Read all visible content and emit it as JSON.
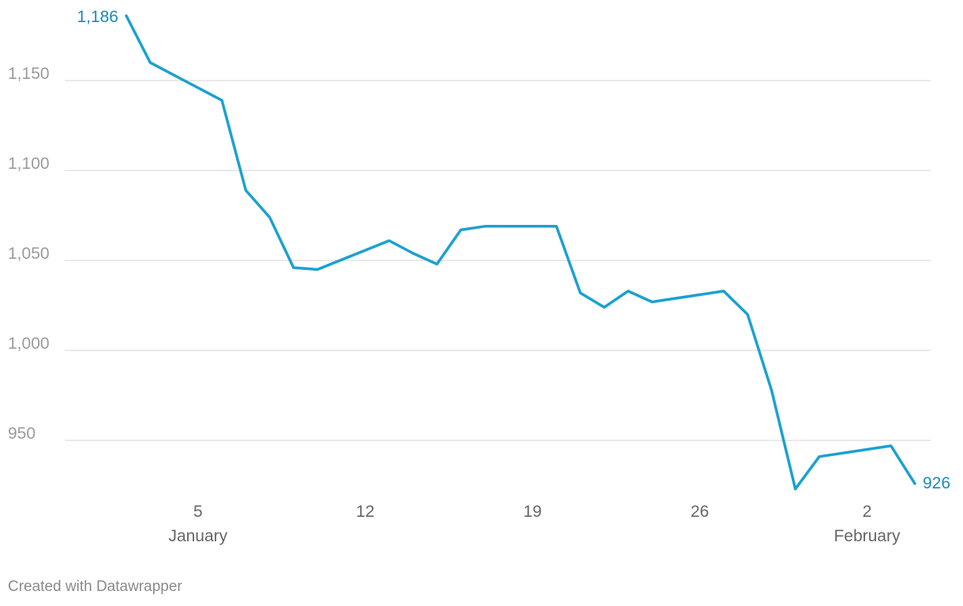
{
  "chart_data": {
    "type": "line",
    "x_unit": "day",
    "x": [
      "2020-01-02",
      "2020-01-03",
      "2020-01-06",
      "2020-01-07",
      "2020-01-08",
      "2020-01-09",
      "2020-01-10",
      "2020-01-13",
      "2020-01-14",
      "2020-01-15",
      "2020-01-16",
      "2020-01-17",
      "2020-01-20",
      "2020-01-21",
      "2020-01-22",
      "2020-01-23",
      "2020-01-24",
      "2020-01-27",
      "2020-01-28",
      "2020-01-29",
      "2020-01-30",
      "2020-01-31",
      "2020-02-03",
      "2020-02-04"
    ],
    "series": [
      {
        "name": "",
        "color": "#1ba1d0",
        "values": [
          1186,
          1160,
          1139,
          1089,
          1074,
          1046,
          1045,
          1061,
          1054,
          1048,
          1067,
          1069,
          1069,
          1032,
          1024,
          1033,
          1027,
          1033,
          1020,
          978,
          923,
          941,
          947,
          926
        ]
      }
    ],
    "ylim": [
      922,
      1186
    ],
    "yticks": [
      950,
      1000,
      1050,
      1100,
      1150
    ],
    "ytick_labels": [
      "950",
      "1,000",
      "1,050",
      "1,100",
      "1,150"
    ],
    "xticks": [
      {
        "date": "2020-01-05",
        "label": "5",
        "sublabel": "January"
      },
      {
        "date": "2020-01-12",
        "label": "12",
        "sublabel": ""
      },
      {
        "date": "2020-01-19",
        "label": "19",
        "sublabel": ""
      },
      {
        "date": "2020-01-26",
        "label": "26",
        "sublabel": ""
      },
      {
        "date": "2020-02-02",
        "label": "2",
        "sublabel": "February"
      }
    ],
    "start_label": "1,186",
    "end_label": "926",
    "grid": true,
    "colors": {
      "line": "#1ba1d0",
      "label": "#1a8bb8",
      "grid": "#e2e2e2",
      "tick_text": "#9b9b9b",
      "x_text": "#666666"
    }
  },
  "footer": {
    "text": "Created with Datawrapper"
  }
}
